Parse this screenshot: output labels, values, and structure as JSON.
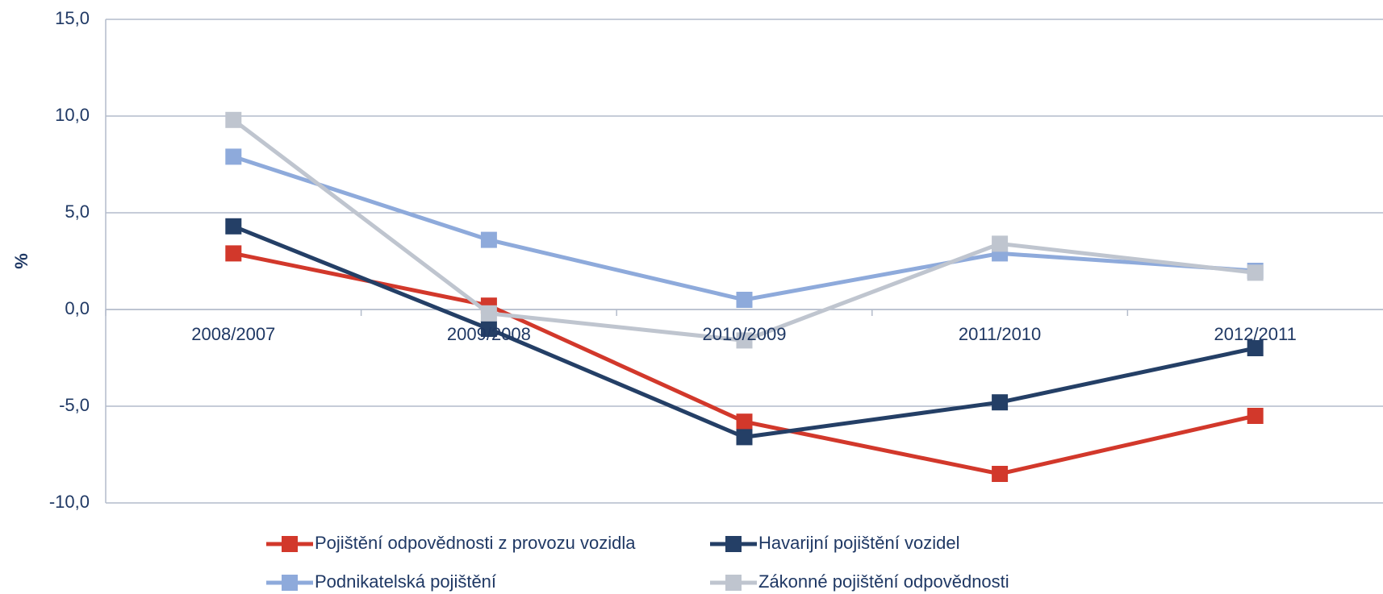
{
  "chart_data": {
    "type": "line",
    "y_label": "%",
    "categories": [
      "2008/2007",
      "2009/2008",
      "2010/2009",
      "2011/2010",
      "2012/2011"
    ],
    "series": [
      {
        "name": "Pojištění odpovědnosti z provozu vozidla",
        "color": "#d2382b",
        "values": [
          2.9,
          0.2,
          -5.8,
          -8.5,
          -5.5
        ]
      },
      {
        "name": "Havarijní pojištění vozidel",
        "color": "#243f66",
        "values": [
          4.3,
          -1.0,
          -6.6,
          -4.8,
          -2.0
        ]
      },
      {
        "name": "Podnikatelská pojištění",
        "color": "#8eaadb",
        "values": [
          7.9,
          3.6,
          0.5,
          2.9,
          2.0
        ]
      },
      {
        "name": "Zákonné pojištění odpovědnosti",
        "color": "#bfc5cf",
        "values": [
          9.8,
          -0.2,
          -1.6,
          3.4,
          1.9
        ]
      }
    ],
    "ylim": [
      -10,
      15
    ],
    "yticks": [
      {
        "value": -10,
        "label": "-10,0"
      },
      {
        "value": -5,
        "label": "-5,0"
      },
      {
        "value": 0,
        "label": "0,0"
      },
      {
        "value": 5,
        "label": "5,0"
      },
      {
        "value": 10,
        "label": "10,0"
      },
      {
        "value": 15,
        "label": "15,0"
      }
    ],
    "grid": true,
    "legend": "bottom"
  }
}
